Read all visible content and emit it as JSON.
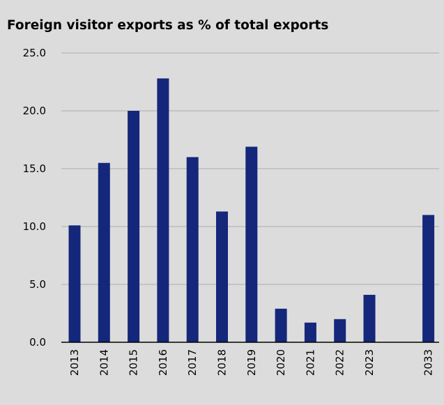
{
  "chart_data": {
    "type": "bar",
    "title": "Foreign visitor exports as % of total exports",
    "xlabel": "",
    "ylabel": "",
    "categories": [
      "2013",
      "2014",
      "2015",
      "2016",
      "2017",
      "2018",
      "2019",
      "2020",
      "2021",
      "2022",
      "2023",
      "",
      "2033"
    ],
    "values": [
      10.1,
      15.5,
      20.0,
      22.8,
      16.0,
      11.3,
      16.9,
      2.9,
      1.7,
      2.0,
      4.1,
      null,
      11.0
    ],
    "ylim": [
      0,
      25
    ],
    "yticks": [
      "0.0",
      "5.0",
      "10.0",
      "15.0",
      "20.0",
      "25.0"
    ],
    "grid": true,
    "colors": {
      "bar": "#14277a",
      "background": "#dcdcdc",
      "grid": "#ababab",
      "axis": "#000000"
    }
  }
}
